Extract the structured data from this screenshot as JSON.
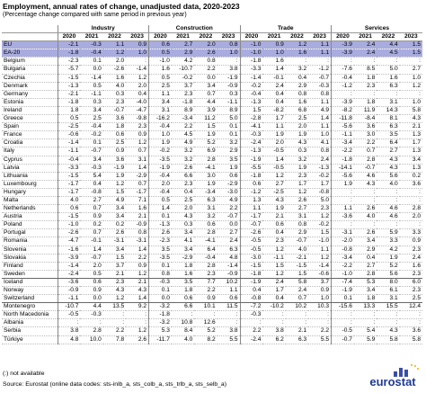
{
  "header": {
    "title": "Employment, annual rates of change, unadjusted data, 2020-2023",
    "subtitle": "(Percentage change compared with same period in previous year)"
  },
  "table": {
    "groups": [
      "Industry",
      "Construction",
      "Trade",
      "Services"
    ],
    "years": [
      "2020",
      "2021",
      "2022",
      "2023",
      "2020",
      "2021",
      "2022",
      "2023",
      "2020",
      "2021",
      "2022",
      "2023",
      "2020",
      "2021",
      "2022",
      "2023"
    ],
    "rows": [
      [
        "EU",
        "-2.1",
        "-0.3",
        "1.1",
        "0.9",
        "0.6",
        "2.7",
        "2.0",
        "0.8",
        "-1.0",
        "0.9",
        "1.2",
        "1.1",
        "-3.9",
        "2.4",
        "4.4",
        "1.5"
      ],
      [
        "EA-20",
        "-1.8",
        "-0.4",
        "1.2",
        "1.0",
        "0.5",
        "2.9",
        "2.6",
        "1.0",
        "-1.0",
        "1.0",
        "1.6",
        "1.1",
        "-3.9",
        "2.4",
        "4.5",
        "1.5"
      ],
      [
        "Belgium",
        "-2.3",
        "0.1",
        "2.0",
        ":",
        "-1.0",
        "4.2",
        "0.8",
        ":",
        "-1.8",
        "1.6",
        ":",
        ":",
        ":",
        ":",
        ":",
        ":"
      ],
      [
        "Bulgaria",
        "-5.7",
        "0.0",
        "-2.6",
        "-1.4",
        "1.6",
        "-10.7",
        "2.2",
        "3.8",
        "-3.3",
        "1.4",
        "3.2",
        "-1.2",
        "-7.6",
        "8.5",
        "5.0",
        "2.7"
      ],
      [
        "Czechia",
        "-1.5",
        "-1.4",
        "1.6",
        "1.2",
        "0.5",
        "-0.2",
        "0.0",
        "-1.9",
        "-1.4",
        "-0.1",
        "0.4",
        "-0.7",
        "-0.4",
        "1.8",
        "1.6",
        "1.0"
      ],
      [
        "Denmark",
        "-1.3",
        "0.5",
        "4.0",
        "2.0",
        "2.5",
        "3.7",
        "3.4",
        "-0.9",
        "-0.2",
        "2.4",
        "2.9",
        "-0.3",
        "-1.2",
        "2.3",
        "6.3",
        "1.2"
      ],
      [
        "Germany",
        "-2.1",
        "-1.1",
        "0.3",
        "0.4",
        "1.1",
        "2.3",
        "0.7",
        "0.3",
        "-0.4",
        "0.4",
        "0.8",
        "0.8",
        ":",
        ":",
        ":",
        ":"
      ],
      [
        "Estonia",
        "-1.8",
        "0.3",
        "2.3",
        "-4.0",
        "3.4",
        "-1.8",
        "4.4",
        "-1.1",
        "-1.3",
        "0.4",
        "1.6",
        "1.1",
        "-3.9",
        "1.8",
        "3.1",
        "1.0"
      ],
      [
        "Ireland",
        "1.8",
        "3.4",
        "-0.7",
        "-4.7",
        "3.1",
        "8.9",
        "3.9",
        "8.9",
        "1.5",
        "-8.2",
        "6.8",
        "4.9",
        "-8.2",
        "11.9",
        "14.3",
        "5.8"
      ],
      [
        "Greece",
        "0.5",
        "2.5",
        "3.6",
        "-9.8",
        "-16.2",
        "-3.4",
        "11.2",
        "5.0",
        "-2.8",
        "1.7",
        "2.5",
        "1.4",
        "-11.8",
        "-8.4",
        "8.1",
        "4.3"
      ],
      [
        "Spain",
        "-2.5",
        "-0.4",
        "1.8",
        "2.3",
        "-0.4",
        "2.2",
        "1.5",
        "0.1",
        "-4.1",
        "1.1",
        "2.0",
        "1.1",
        "-5.6",
        "3.6",
        "6.3",
        "2.1"
      ],
      [
        "France",
        "-0.6",
        "-0.2",
        "0.6",
        "0.9",
        "1.0",
        "4.5",
        "1.9",
        "0.1",
        "-0.3",
        "1.9",
        "1.9",
        "1.0",
        "-1.1",
        "3.0",
        "3.5",
        "1.3"
      ],
      [
        "Croatia",
        "-1.4",
        "0.1",
        "2.5",
        "1.2",
        "1.9",
        "4.9",
        "5.2",
        "3.2",
        "-2.4",
        "2.0",
        "4.3",
        "4.1",
        "-3.4",
        "2.2",
        "6.4",
        "1.7"
      ],
      [
        "Italy",
        "-1.1",
        "-0.7",
        "0.9",
        "0.7",
        "-0.2",
        "3.2",
        "6.9",
        "2.9",
        "-1.3",
        "-0.5",
        "0.3",
        "0.8",
        "-2.2",
        "0.7",
        "2.7",
        "1.3"
      ],
      [
        "Cyprus",
        "-0.4",
        "3.4",
        "3.6",
        "3.1",
        "-3.5",
        "3.2",
        "2.8",
        "3.5",
        "-1.9",
        "1.4",
        "3.2",
        "2.4",
        "-1.8",
        "2.8",
        "4.3",
        "3.4"
      ],
      [
        "Latvia",
        "-3.3",
        "-0.3",
        "-1.9",
        "1.4",
        "-1.9",
        "2.6",
        "-4.1",
        "1.9",
        "-5.5",
        "-0.5",
        "1.9",
        "-1.3",
        "-14.1",
        "-0.7",
        "4.3",
        "1.3"
      ],
      [
        "Lithuania",
        "-1.5",
        "5.4",
        "1.9",
        "-2.9",
        "-0.4",
        "6.6",
        "3.0",
        "0.6",
        "-1.8",
        "1.2",
        "2.3",
        "-0.2",
        "-5.6",
        "4.6",
        "5.6",
        "0.2"
      ],
      [
        "Luxembourg",
        "-1.7",
        "0.4",
        "1.2",
        "0.7",
        "2.0",
        "2.3",
        "1.9",
        "-2.9",
        "0.6",
        "2.7",
        "1.7",
        "1.7",
        "1.9",
        "4.3",
        "4.0",
        "3.6"
      ],
      [
        "Hungary",
        "-1.7",
        "-0.8",
        "1.5",
        "-1.7",
        "-0.4",
        "0.4",
        "-3.4",
        "-3.0",
        "-1.2",
        "-2.5",
        "1.2",
        "-0.8",
        ":",
        ":",
        ":",
        ":"
      ],
      [
        "Malta",
        "4.0",
        "2.7",
        "4.9",
        "7.1",
        "0.5",
        "2.5",
        "6.3",
        "4.9",
        "1.3",
        "4.3",
        "2.6",
        "5.0",
        ":",
        ":",
        ":",
        ":"
      ],
      [
        "Netherlands",
        "0.6",
        "0.7",
        "3.4",
        "1.6",
        "1.4",
        "2.0",
        "3.1",
        "2.2",
        "1.1",
        "1.9",
        "2.7",
        "2.3",
        "1.1",
        "2.6",
        "4.6",
        "2.8"
      ],
      [
        "Austria",
        "-1.5",
        "0.9",
        "3.4",
        "2.1",
        "0.1",
        "4.3",
        "3.2",
        "-0.7",
        "-1.7",
        "2.1",
        "3.1",
        "1.2",
        "-3.6",
        "4.0",
        "4.6",
        "2.0"
      ],
      [
        "Poland",
        "-1.0",
        "0.2",
        "0.2",
        "-0.9",
        "-1.3",
        "0.3",
        "0.6",
        "0.0",
        "-0.7",
        "0.6",
        "0.8",
        "-0.2",
        ":",
        ":",
        ":",
        ":"
      ],
      [
        "Portugal",
        "-2.6",
        "0.7",
        "2.6",
        "0.8",
        "2.6",
        "3.4",
        "2.8",
        "2.7",
        "-2.6",
        "0.4",
        "2.9",
        "1.5",
        "-3.1",
        "2.6",
        "5.9",
        "3.3"
      ],
      [
        "Romania",
        "-4.7",
        "-0.1",
        "-3.1",
        "-3.1",
        "-2.3",
        "4.1",
        "-4.1",
        "2.4",
        "-0.5",
        "2.3",
        "-0.7",
        "-1.0",
        "-2.0",
        "3.4",
        "3.3",
        "0.9"
      ],
      [
        "Slovenia",
        "-1.6",
        "1.4",
        "3.4",
        "1.4",
        "3.5",
        "3.4",
        "6.4",
        "6.3",
        "-0.5",
        "1.2",
        "4.0",
        "1.1",
        "-0.8",
        "2.9",
        "4.2",
        "2.3"
      ],
      [
        "Slovakia",
        "-3.9",
        "-0.7",
        "1.5",
        "2.2",
        "-3.5",
        "-2.9",
        "-0.4",
        "4.8",
        "-3.0",
        "-1.1",
        "-2.1",
        "1.2",
        "-3.4",
        "0.4",
        "1.9",
        "2.4"
      ],
      [
        "Finland",
        "-1.4",
        "2.0",
        "3.7",
        "0.9",
        "0.1",
        "1.8",
        "2.8",
        "-1.4",
        "-1.5",
        "1.5",
        "-1.5",
        "-1.4",
        "-2.2",
        "2.7",
        "5.2",
        "1.6"
      ],
      [
        "Sweden",
        "-2.4",
        "0.5",
        "2.1",
        "1.2",
        "0.8",
        "1.6",
        "2.3",
        "-0.9",
        "-1.8",
        "1.2",
        "1.5",
        "-0.6",
        "-1.0",
        "2.8",
        "5.6",
        "2.3"
      ],
      [
        "Iceland",
        "-3.6",
        "0.6",
        "2.3",
        "2.1",
        "-0.3",
        "3.5",
        "7.7",
        "10.2",
        "-1.9",
        "2.4",
        "5.8",
        "3.7",
        "-7.4",
        "5.3",
        "8.0",
        "6.0"
      ],
      [
        "Norway",
        "-0.9",
        "0.9",
        "4.3",
        "4.3",
        "0.1",
        "1.8",
        "2.2",
        "1.1",
        "0.4",
        "1.7",
        "2.4",
        "0.9",
        "-1.9",
        "3.4",
        "6.1",
        "2.3"
      ],
      [
        "Switzerland",
        "-1.1",
        "0.0",
        "1.2",
        "1.4",
        "0.0",
        "0.6",
        "0.9",
        "0.6",
        "-0.8",
        "0.4",
        "0.7",
        "1.0",
        "0.1",
        "1.8",
        "3.1",
        "2.5"
      ],
      [
        "Montenegro",
        "-10.7",
        "4.4",
        "13.5",
        "9.2",
        "-3.2",
        "6.6",
        "10.1",
        "11.5",
        "-7.2",
        "-10.2",
        "10.2",
        "10.3",
        "-15.6",
        "13.3",
        "15.5",
        "12.4"
      ],
      [
        "North Macedonia",
        "-0.5",
        "-0.3",
        ":",
        ":",
        "-1.8",
        ":",
        ":",
        ":",
        "-0.3",
        ":",
        ":",
        ":",
        ":",
        ":",
        ":",
        ":"
      ],
      [
        "Albania",
        ":",
        ":",
        ":",
        ":",
        "-3.2",
        "10.8",
        "12.6",
        ":",
        ":",
        ":",
        ":",
        ":",
        ":",
        ":",
        ":",
        ":"
      ],
      [
        "Serbia",
        "3.8",
        "2.8",
        "2.2",
        "1.2",
        "5.3",
        "8.4",
        "5.2",
        "3.8",
        "2.2",
        "3.8",
        "2.1",
        "2.2",
        "-0.5",
        "5.4",
        "4.3",
        "3.6"
      ],
      [
        "Türkiye",
        "4.8",
        "10.0",
        "7.8",
        "2.6",
        "-11.7",
        "4.0",
        "8.2",
        "5.5",
        "-2.4",
        "6.2",
        "6.3",
        "5.5",
        "-0.7",
        "5.9",
        "5.8",
        "5.8"
      ]
    ]
  },
  "footer": {
    "note": "(:) not available",
    "source": "Source: Eurostat (online data codes: sts-inlb_a, sts_colb_a, sts_trlb_a, sts_selb_a)",
    "logo": "eurostat"
  }
}
